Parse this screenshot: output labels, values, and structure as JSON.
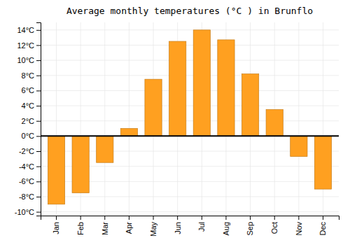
{
  "chart_data": {
    "type": "bar",
    "title": "Average monthly temperatures (°C ) in Brunflo",
    "categories": [
      "Jan",
      "Feb",
      "Mar",
      "Apr",
      "May",
      "Jun",
      "Jul",
      "Aug",
      "Sep",
      "Oct",
      "Nov",
      "Dec"
    ],
    "values": [
      -9.0,
      -7.5,
      -3.5,
      1.0,
      7.5,
      12.5,
      14.0,
      12.7,
      8.2,
      3.5,
      -2.7,
      -7.0
    ],
    "color": "#FFA020",
    "ylim": [
      -10.5,
      15
    ],
    "yticks": [
      {
        "value": -10,
        "label": "-10°C"
      },
      {
        "value": -8,
        "label": "-8°C"
      },
      {
        "value": -6,
        "label": "-6°C"
      },
      {
        "value": -4,
        "label": "-4°C"
      },
      {
        "value": -2,
        "label": "-2°C"
      },
      {
        "value": 0,
        "label": "0°C"
      },
      {
        "value": 2,
        "label": "2°C"
      },
      {
        "value": 4,
        "label": "4°C"
      },
      {
        "value": 6,
        "label": "6°C"
      },
      {
        "value": 8,
        "label": "8°C"
      },
      {
        "value": 10,
        "label": "10°C"
      },
      {
        "value": 12,
        "label": "12°C"
      },
      {
        "value": 14,
        "label": "14°C"
      }
    ],
    "grid": true
  }
}
